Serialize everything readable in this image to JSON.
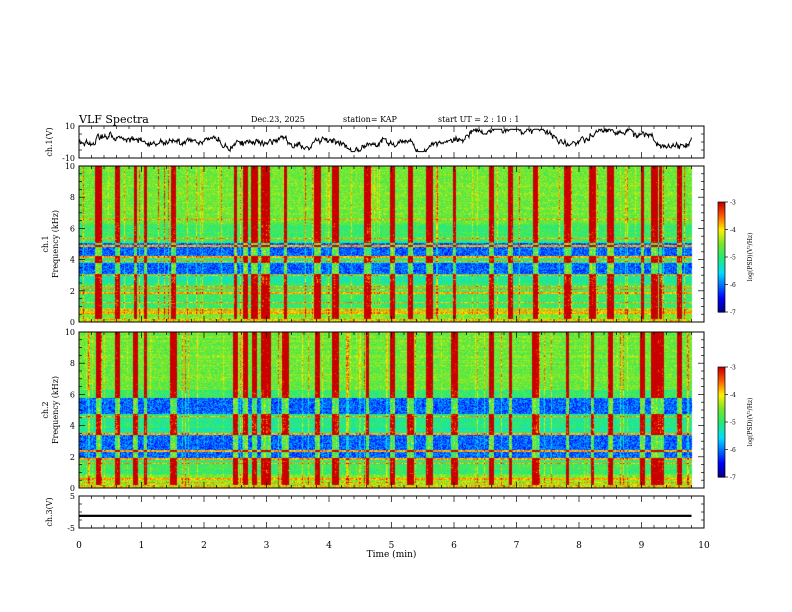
{
  "header": {
    "title": "VLF Spectra",
    "date": "Dec.23, 2025",
    "station": "station= KAP",
    "start_ut": "start  UT =   2  : 10 : 1"
  },
  "chart_data": [
    {
      "name": "ch1-waveform",
      "type": "line",
      "ylabel": "ch.1(V)",
      "ylim": [
        -10,
        10
      ],
      "y_ticks": [
        "10",
        "-10"
      ],
      "xlim": [
        0,
        10
      ],
      "x_extent_min": 9.8,
      "series": [
        {
          "name": "ch.1",
          "color": "#000000",
          "mean": 0,
          "typical_range": [
            -5,
            7
          ]
        }
      ]
    },
    {
      "name": "ch1-spectrogram",
      "type": "heatmap",
      "ylabel_line1": "ch.1",
      "ylabel_line2": "Frequency  (kHz)",
      "ylim": [
        0,
        10
      ],
      "y_ticks": [
        "10",
        "8",
        "6",
        "4",
        "2",
        "0"
      ],
      "xlim": [
        0,
        10
      ],
      "quiet_bands_khz": [
        [
          3.1,
          3.8
        ],
        [
          4.2,
          5.1
        ]
      ],
      "spectral_lines_khz": [
        6.6,
        5.4,
        4.9,
        4.2,
        3.9,
        3.0,
        2.3,
        2.1,
        1.9,
        1.3,
        0.8,
        0.6
      ],
      "impulsive_columns_min": [
        0.3,
        0.6,
        0.9,
        1.05,
        1.5,
        2.5,
        2.65,
        2.8,
        2.95,
        3.0,
        3.3,
        3.8,
        4.1,
        4.6,
        5.0,
        5.3,
        5.6,
        6.0,
        6.6,
        6.9,
        7.3,
        7.8,
        8.2,
        8.5,
        9.0,
        9.2,
        9.3,
        9.6
      ]
    },
    {
      "name": "ch2-spectrogram",
      "type": "heatmap",
      "ylabel_line1": "ch.2",
      "ylabel_line2": "Frequency  (kHz)",
      "ylim": [
        0,
        10
      ],
      "y_ticks": [
        "10",
        "8",
        "6",
        "4",
        "2",
        "0"
      ],
      "xlim": [
        0,
        10
      ],
      "quiet_bands_khz": [
        [
          1.8,
          2.4
        ],
        [
          2.5,
          3.4
        ],
        [
          4.8,
          5.8
        ]
      ],
      "spectral_lines_khz": [
        4.6,
        3.5,
        2.4,
        1.9,
        1.6,
        0.6,
        0.4
      ],
      "impulsive_columns_min": [
        0.3,
        0.6,
        0.9,
        1.05,
        1.5,
        2.5,
        2.65,
        2.8,
        2.95,
        3.0,
        3.3,
        3.8,
        4.1,
        4.6,
        5.0,
        5.3,
        5.6,
        6.0,
        6.6,
        6.9,
        7.3,
        7.8,
        8.2,
        8.5,
        9.0,
        9.2,
        9.3,
        9.6
      ]
    },
    {
      "name": "ch3-waveform",
      "type": "line",
      "ylabel": "ch.3(V)",
      "ylim": [
        -5,
        5
      ],
      "y_ticks": [
        "5",
        "-5"
      ],
      "xlim": [
        0,
        10
      ],
      "series": [
        {
          "name": "ch.3",
          "color": "#000000",
          "mean": -1.2,
          "band_halfwidth": 0.35
        }
      ]
    },
    {
      "name": "x-axis",
      "type": "axis",
      "xlabel": "Time  (min)",
      "ticks": [
        "0",
        "1",
        "2",
        "3",
        "4",
        "5",
        "6",
        "7",
        "8",
        "9",
        "10"
      ]
    },
    {
      "name": "colorbar",
      "type": "colorbar",
      "label": "log(PSD)(V²/Hz)",
      "range": [
        -7,
        -3
      ],
      "ticks": [
        "-3",
        "-4",
        "-5",
        "-6",
        "-7"
      ]
    }
  ]
}
